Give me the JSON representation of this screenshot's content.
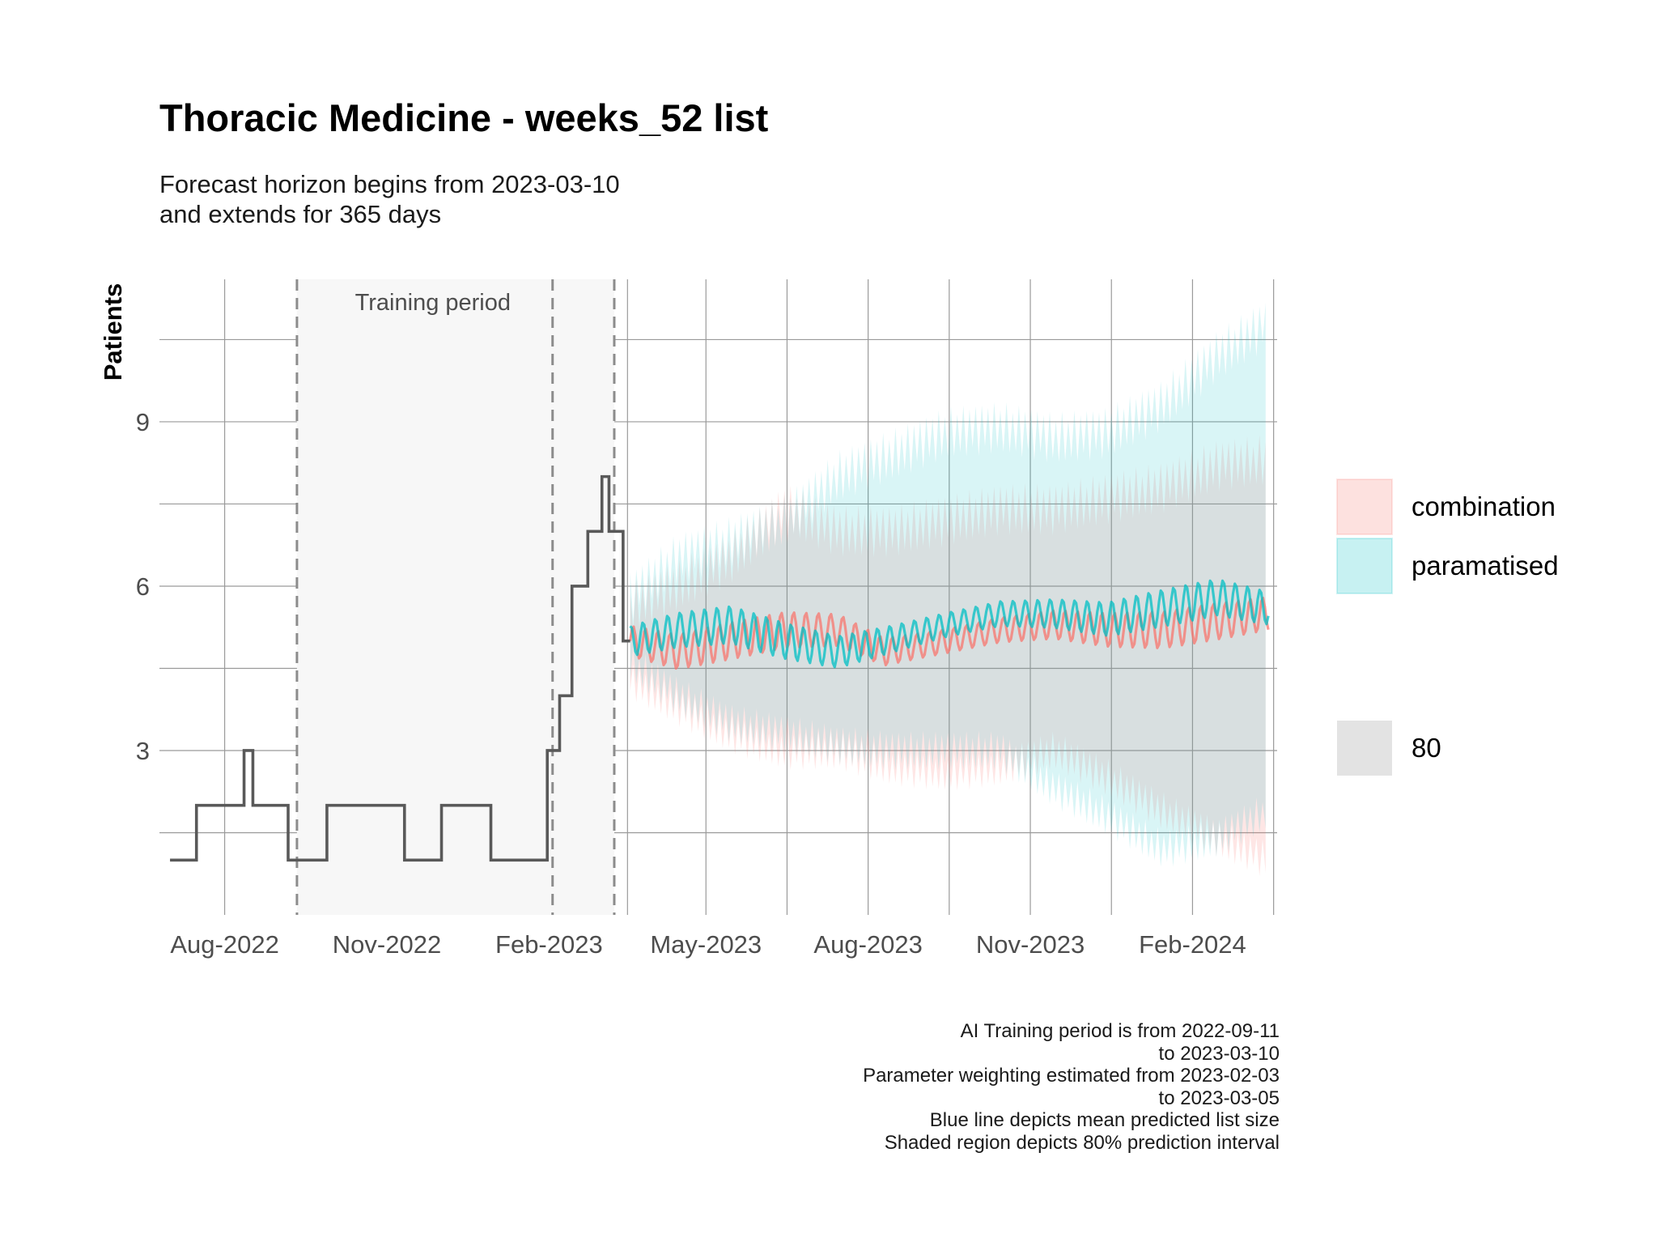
{
  "chart_data": {
    "type": "line",
    "title": "Thoracic Medicine - weeks_52 list",
    "subtitle": [
      "Forecast horizon begins from 2023-03-10",
      "and extends for 365 days"
    ],
    "ylabel": "Patients",
    "xlabel": "",
    "y_ticks": [
      3,
      6,
      9
    ],
    "ylim": [
      0,
      11.6
    ],
    "x_range": [
      "2022-06-25",
      "2024-03-20"
    ],
    "x_ticks": [
      {
        "date": "2022-08-01",
        "label": "Aug-2022"
      },
      {
        "date": "2022-11-01",
        "label": "Nov-2022"
      },
      {
        "date": "2023-02-01",
        "label": "Feb-2023"
      },
      {
        "date": "2023-05-01",
        "label": "May-2023"
      },
      {
        "date": "2023-08-01",
        "label": "Aug-2023"
      },
      {
        "date": "2023-11-01",
        "label": "Nov-2023"
      },
      {
        "date": "2024-02-01",
        "label": "Feb-2024"
      }
    ],
    "grid": true,
    "training_period": {
      "label": "Training period",
      "start": "2022-09-11",
      "end": "2023-03-10",
      "weighting_start": "2023-02-03",
      "forecast_start": "2023-03-10"
    },
    "observed_series": {
      "color": "#595959",
      "steps": [
        [
          "2022-07-01",
          1
        ],
        [
          "2022-07-16",
          2
        ],
        [
          "2022-08-12",
          3
        ],
        [
          "2022-08-17",
          2
        ],
        [
          "2022-09-06",
          1
        ],
        [
          "2022-09-28",
          2
        ],
        [
          "2022-11-11",
          1
        ],
        [
          "2022-12-02",
          2
        ],
        [
          "2022-12-30",
          1
        ],
        [
          "2023-01-31",
          3
        ],
        [
          "2023-02-07",
          4
        ],
        [
          "2023-02-14",
          6
        ],
        [
          "2023-02-23",
          7
        ],
        [
          "2023-03-03",
          8
        ],
        [
          "2023-03-07",
          7
        ],
        [
          "2023-03-15",
          5
        ],
        [
          "2023-03-19",
          5
        ]
      ]
    },
    "series": [
      {
        "name": "combination",
        "color": "#F8766D",
        "band_color": "#F8766D",
        "mean": [
          [
            "2023-03-19",
            5.0
          ],
          [
            "2023-04-15",
            4.8
          ],
          [
            "2023-05-15",
            5.0
          ],
          [
            "2023-06-15",
            5.2
          ],
          [
            "2023-07-15",
            5.2
          ],
          [
            "2023-08-10",
            4.8
          ],
          [
            "2023-09-15",
            5.0
          ],
          [
            "2023-10-15",
            5.2
          ],
          [
            "2023-11-15",
            5.3
          ],
          [
            "2023-12-15",
            5.2
          ],
          [
            "2024-01-15",
            5.2
          ],
          [
            "2024-03-15",
            5.5
          ]
        ],
        "lower_80": [
          [
            "2023-03-19",
            4.3
          ],
          [
            "2023-04-15",
            3.8
          ],
          [
            "2023-05-15",
            3.3
          ],
          [
            "2023-06-15",
            3.0
          ],
          [
            "2023-07-15",
            3.0
          ],
          [
            "2023-08-15",
            2.7
          ],
          [
            "2023-09-15",
            2.6
          ],
          [
            "2023-10-15",
            2.7
          ],
          [
            "2023-11-15",
            3.0
          ],
          [
            "2023-12-15",
            2.5
          ],
          [
            "2024-01-15",
            1.9
          ],
          [
            "2024-02-15",
            1.4
          ],
          [
            "2024-03-15",
            1.0
          ]
        ],
        "upper_80": [
          [
            "2023-03-19",
            5.6
          ],
          [
            "2023-04-15",
            6.0
          ],
          [
            "2023-05-15",
            6.5
          ],
          [
            "2023-06-15",
            7.4
          ],
          [
            "2023-07-15",
            7.0
          ],
          [
            "2023-08-15",
            7.0
          ],
          [
            "2023-09-15",
            7.2
          ],
          [
            "2023-10-15",
            7.4
          ],
          [
            "2023-11-15",
            7.4
          ],
          [
            "2023-12-15",
            7.6
          ],
          [
            "2024-01-15",
            7.8
          ],
          [
            "2024-02-15",
            8.2
          ],
          [
            "2024-03-15",
            8.3
          ]
        ]
      },
      {
        "name": "paramatised",
        "color": "#00BFC4",
        "band_color": "#00BFC4",
        "mean": [
          [
            "2023-03-19",
            5.0
          ],
          [
            "2023-04-15",
            5.2
          ],
          [
            "2023-05-15",
            5.3
          ],
          [
            "2023-06-15",
            5.0
          ],
          [
            "2023-07-15",
            4.8
          ],
          [
            "2023-08-10",
            5.0
          ],
          [
            "2023-09-15",
            5.3
          ],
          [
            "2023-10-15",
            5.5
          ],
          [
            "2023-11-15",
            5.5
          ],
          [
            "2023-12-15",
            5.4
          ],
          [
            "2024-01-15",
            5.6
          ],
          [
            "2024-02-15",
            5.8
          ],
          [
            "2024-03-15",
            5.6
          ]
        ],
        "lower_80": [
          [
            "2023-03-19",
            4.6
          ],
          [
            "2023-04-15",
            4.0
          ],
          [
            "2023-05-15",
            3.5
          ],
          [
            "2023-06-15",
            3.3
          ],
          [
            "2023-07-15",
            3.1
          ],
          [
            "2023-08-15",
            3.0
          ],
          [
            "2023-09-15",
            3.0
          ],
          [
            "2023-10-15",
            3.0
          ],
          [
            "2023-11-15",
            2.3
          ],
          [
            "2023-12-15",
            1.8
          ],
          [
            "2024-01-15",
            1.2
          ],
          [
            "2024-02-15",
            1.4
          ],
          [
            "2024-03-15",
            1.9
          ]
        ],
        "upper_80": [
          [
            "2023-03-19",
            5.8
          ],
          [
            "2023-04-15",
            6.5
          ],
          [
            "2023-05-15",
            6.8
          ],
          [
            "2023-06-15",
            7.2
          ],
          [
            "2023-07-15",
            8.0
          ],
          [
            "2023-08-15",
            8.4
          ],
          [
            "2023-09-15",
            8.8
          ],
          [
            "2023-10-15",
            8.9
          ],
          [
            "2023-11-15",
            8.7
          ],
          [
            "2023-12-15",
            8.8
          ],
          [
            "2024-01-15",
            9.3
          ],
          [
            "2024-02-15",
            10.2
          ],
          [
            "2024-03-15",
            10.8
          ]
        ]
      }
    ],
    "legend": {
      "position": "right",
      "fill_items": [
        {
          "label": "combination",
          "color": "#F8766D"
        },
        {
          "label": "paramatised",
          "color": "#00BFC4"
        }
      ],
      "level_items": [
        {
          "label": "80",
          "color": "#D9D9D9"
        }
      ]
    },
    "caption": [
      "AI Training period is from 2022-09-11",
      "to 2023-03-10",
      "Parameter weighting estimated from 2023-02-03",
      "to 2023-03-05",
      "Blue line depicts mean predicted list size",
      "Shaded region depicts 80% prediction interval"
    ]
  }
}
